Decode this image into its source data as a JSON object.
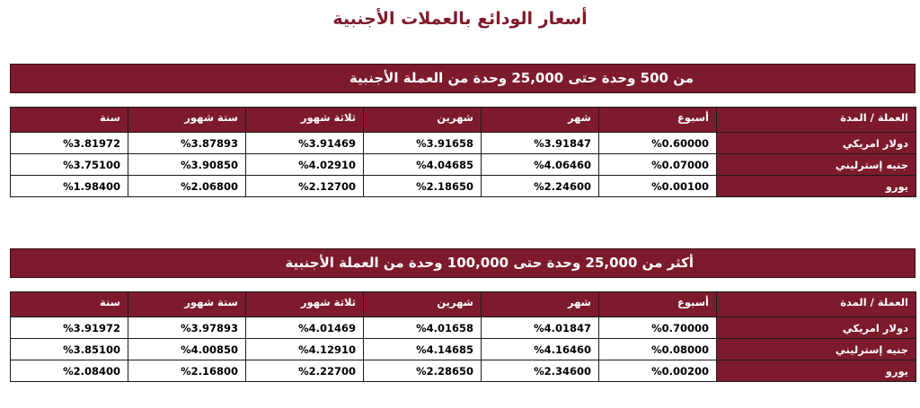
{
  "page_title": "أسعار الودائع بالعملات الأجنبية",
  "headers": [
    "العملة / المدة",
    "أسبوع",
    "شهر",
    "شهرين",
    "ثلاثة شهور",
    "ستة شهور",
    "سنة"
  ],
  "sections": [
    {
      "banner": "من 500 وحدة حتى  25,000 وحدة من العملة الأجنبية",
      "rows": [
        {
          "currency": "دولار امريكي",
          "rates": [
            "%0.60000",
            "%3.91847",
            "%3.91658",
            "%3.91469",
            "%3.87893",
            "%3.81972"
          ]
        },
        {
          "currency": "جنيه إسترليني",
          "rates": [
            "%0.07000",
            "%4.06460",
            "%4.04685",
            "%4.02910",
            "%3.90850",
            "%3.75100"
          ]
        },
        {
          "currency": "يورو",
          "rates": [
            "%0.00100",
            "%2.24600",
            "%2.18650",
            "%2.12700",
            "%2.06800",
            "%1.98400"
          ]
        }
      ]
    },
    {
      "banner": "أكثر من  25,000 وحدة حتى  100,000 وحدة من العملة الأجنبية",
      "rows": [
        {
          "currency": "دولار امريكي",
          "rates": [
            "%0.70000",
            "%4.01847",
            "%4.01658",
            "%4.01469",
            "%3.97893",
            "%3.91972"
          ]
        },
        {
          "currency": "جنيه إسترليني",
          "rates": [
            "%0.08000",
            "%4.16460",
            "%4.14685",
            "%4.12910",
            "%4.00850",
            "%3.85100"
          ]
        },
        {
          "currency": "يورو",
          "rates": [
            "%0.00200",
            "%2.34600",
            "%2.28650",
            "%2.22700",
            "%2.16800",
            "%2.08400"
          ]
        }
      ]
    }
  ]
}
